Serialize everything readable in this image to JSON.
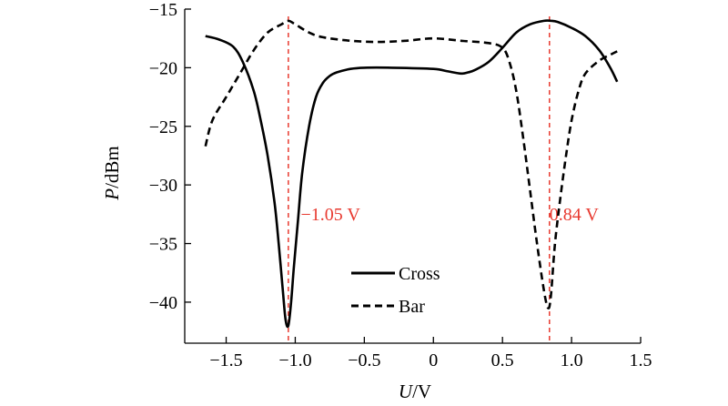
{
  "chart_data": {
    "type": "line",
    "xlabel": {
      "var": "U",
      "unit": "/V"
    },
    "ylabel": {
      "var": "P",
      "unit": "/dBm"
    },
    "xlim": [
      -1.8,
      1.5
    ],
    "ylim": [
      -43.5,
      -15
    ],
    "xticks": [
      -1.5,
      -1.0,
      -0.5,
      0,
      0.5,
      1.0,
      1.5
    ],
    "xtick_labels": [
      "−1.5",
      "−1.0",
      "−0.5",
      "0",
      "0.5",
      "1.0",
      "1.5"
    ],
    "yticks": [
      -15,
      -20,
      -25,
      -30,
      -35,
      -40
    ],
    "ytick_labels": [
      "−15",
      "−20",
      "−25",
      "−30",
      "−35",
      "−40"
    ],
    "grid": false,
    "legend_position": "bottom-center",
    "series": [
      {
        "name": "Cross",
        "style": "solid",
        "x": [
          -1.65,
          -1.55,
          -1.45,
          -1.38,
          -1.3,
          -1.25,
          -1.2,
          -1.15,
          -1.12,
          -1.09,
          -1.07,
          -1.05,
          -1.03,
          -1.01,
          -0.98,
          -0.95,
          -0.9,
          -0.85,
          -0.8,
          -0.75,
          -0.7,
          -0.6,
          -0.5,
          -0.3,
          0.0,
          0.1,
          0.2,
          0.25,
          0.3,
          0.4,
          0.5,
          0.6,
          0.7,
          0.8,
          0.85,
          0.9,
          1.0,
          1.1,
          1.2,
          1.28,
          1.33
        ],
        "y": [
          -17.3,
          -17.6,
          -18.2,
          -19.5,
          -22.0,
          -24.5,
          -27.5,
          -31.5,
          -35.0,
          -39.0,
          -41.5,
          -42.0,
          -40.0,
          -37.0,
          -33.0,
          -29.0,
          -25.0,
          -22.5,
          -21.3,
          -20.7,
          -20.4,
          -20.1,
          -20.0,
          -20.0,
          -20.1,
          -20.3,
          -20.5,
          -20.4,
          -20.2,
          -19.5,
          -18.3,
          -17.0,
          -16.3,
          -16.0,
          -16.0,
          -16.1,
          -16.6,
          -17.3,
          -18.5,
          -20.0,
          -21.2
        ]
      },
      {
        "name": "Bar",
        "style": "dashed",
        "x": [
          -1.65,
          -1.6,
          -1.5,
          -1.4,
          -1.3,
          -1.2,
          -1.1,
          -1.05,
          -1.0,
          -0.9,
          -0.8,
          -0.6,
          -0.4,
          -0.2,
          0.0,
          0.2,
          0.4,
          0.5,
          0.55,
          0.6,
          0.65,
          0.7,
          0.75,
          0.8,
          0.83,
          0.85,
          0.88,
          0.92,
          0.96,
          1.0,
          1.05,
          1.1,
          1.2,
          1.28,
          1.33
        ],
        "y": [
          -26.7,
          -24.5,
          -22.5,
          -20.5,
          -18.5,
          -17.0,
          -16.3,
          -16.0,
          -16.3,
          -17.0,
          -17.4,
          -17.7,
          -17.8,
          -17.7,
          -17.5,
          -17.7,
          -17.9,
          -18.3,
          -19.5,
          -22.0,
          -26.0,
          -30.5,
          -35.0,
          -39.0,
          -40.5,
          -39.5,
          -35.0,
          -31.0,
          -27.5,
          -24.5,
          -22.0,
          -20.5,
          -19.4,
          -18.9,
          -18.6
        ]
      }
    ],
    "annotations": [
      {
        "x": -1.05,
        "label": "−1.05 V",
        "color": "#e8392f",
        "label_x": -0.96,
        "label_y": -33.0,
        "anchor": "start"
      },
      {
        "x": 0.84,
        "label": "0.84 V",
        "color": "#e8392f",
        "label_x": 0.84,
        "label_y": -33.0,
        "anchor": "start"
      }
    ]
  }
}
